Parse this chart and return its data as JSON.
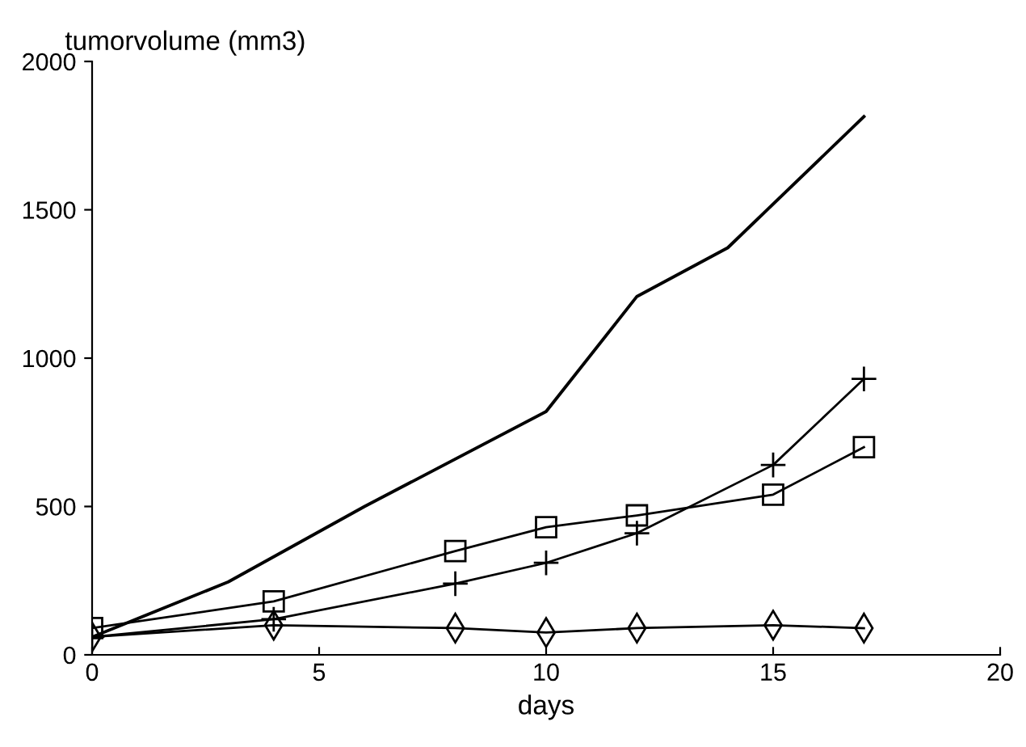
{
  "chart_data": {
    "type": "line",
    "ylabel": "tumorvolume (mm3)",
    "xlabel": "days",
    "xlim": [
      0,
      20
    ],
    "ylim": [
      0,
      2000
    ],
    "xticks": [
      0,
      5,
      10,
      15,
      20
    ],
    "yticks": [
      0,
      500,
      1000,
      1500,
      2000
    ],
    "grid": false,
    "legend": false,
    "series": [
      {
        "color": "#000000",
        "marker": "none",
        "x": [
          0,
          3,
          6,
          10,
          12,
          14,
          17
        ],
        "values": [
          60,
          246,
          500,
          820,
          1208,
          1372,
          1814
        ]
      },
      {
        "color": "#000000",
        "marker": "cross",
        "x": [
          0,
          4,
          8,
          10,
          12,
          15,
          17
        ],
        "values": [
          60,
          120,
          240,
          310,
          410,
          640,
          930
        ]
      },
      {
        "color": "#000000",
        "marker": "square",
        "x": [
          0,
          4,
          8,
          10,
          12,
          15,
          17
        ],
        "values": [
          90,
          180,
          350,
          430,
          470,
          540,
          700
        ]
      },
      {
        "color": "#000000",
        "marker": "diamond",
        "x": [
          0,
          4,
          8,
          10,
          12,
          15,
          17
        ],
        "values": [
          60,
          100,
          90,
          75,
          90,
          100,
          90
        ]
      }
    ]
  }
}
